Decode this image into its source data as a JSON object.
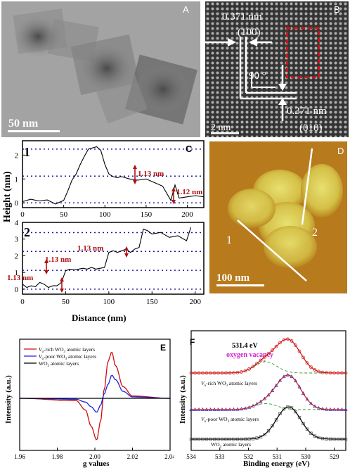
{
  "panel_a": {
    "letter": "A",
    "scale_bar": "50 nm"
  },
  "panel_b": {
    "letter": "B",
    "spacing_top": "0.371  nm",
    "plane_top": "(100)",
    "angle": "90 °",
    "spacing_bottom": "0.371 nm",
    "plane_bottom": "(010)",
    "scale_bar": "2 nm"
  },
  "panel_d": {
    "letter": "D",
    "scale_bar": "100 nm",
    "line1_label": "1",
    "line2_label": "2"
  },
  "panel_c": {
    "letter": "C",
    "profile1_label": "1",
    "profile2_label": "2",
    "ylabel": "Height (nm)",
    "xlabel": "Distance (nm)",
    "step_annotations_1": [
      "1.13 nm",
      "1.12 nm"
    ],
    "step_annotations_2": [
      "1.13 nm",
      "1.13 nm",
      "1.13 nm"
    ]
  },
  "panel_e": {
    "letter": "E",
    "xlabel": "g values",
    "ylabel": "Intensity (a.u.)",
    "legend_sub": "o",
    "legend_rich": "-rich WO",
    "legend_poor": "-poor WO",
    "legend_plain": "WO",
    "legend_sub3": "3",
    "legend_tail": " atomic layers"
  },
  "panel_f": {
    "letter": "F",
    "xlabel": "Binding energy (eV)",
    "ylabel": "Intensity (a.u.)",
    "peak_label": "531.4 eV",
    "vacancy_label": "oxygen vacancy",
    "label_rich": "-rich WO",
    "label_poor": "-poor WO",
    "label_plain": "WO",
    "sub3": "3",
    "tail": " atomic layers"
  },
  "chart_data": [
    {
      "type": "line",
      "panel": "C-1",
      "xlabel": "",
      "ylabel": "Height",
      "xlim": [
        0,
        220
      ],
      "ylim": [
        -0.2,
        2.6
      ],
      "y_ticks": [
        0,
        1,
        2
      ],
      "x": [
        0,
        10,
        20,
        30,
        40,
        50,
        55,
        60,
        65,
        70,
        75,
        80,
        85,
        90,
        95,
        100,
        105,
        110,
        115,
        120,
        130,
        140,
        150,
        160,
        170,
        180,
        185,
        190,
        200,
        210,
        220
      ],
      "values": [
        0.05,
        0.15,
        0.08,
        0.12,
        -0.05,
        0.1,
        0.5,
        0.95,
        1.2,
        1.6,
        1.95,
        2.25,
        2.3,
        2.35,
        2.2,
        1.6,
        1.2,
        1.1,
        1.05,
        1.1,
        1.0,
        0.95,
        1.0,
        0.85,
        0.7,
        0.1,
        0.75,
        0.2,
        0.25,
        0.3,
        0.25
      ],
      "reference_lines": [
        0,
        1.12,
        2.25
      ]
    },
    {
      "type": "line",
      "panel": "C-2",
      "xlabel": "Distance (nm)",
      "ylabel": "Height",
      "xlim": [
        0,
        210
      ],
      "ylim": [
        -0.3,
        4
      ],
      "x_ticks": [
        0,
        50,
        100,
        150,
        200
      ],
      "y_ticks": [
        0,
        1,
        2,
        3,
        4
      ],
      "x": [
        0,
        5,
        10,
        15,
        20,
        25,
        30,
        35,
        40,
        45,
        50,
        55,
        60,
        65,
        70,
        75,
        80,
        85,
        90,
        95,
        100,
        105,
        110,
        115,
        120,
        125,
        130,
        135,
        140,
        145,
        150,
        160,
        170,
        180,
        190,
        195
      ],
      "values": [
        0.3,
        0.1,
        0.2,
        0.15,
        0.4,
        0.3,
        0.1,
        0.2,
        0.2,
        0.4,
        1.1,
        1.2,
        1.15,
        1.2,
        1.25,
        1.2,
        1.3,
        1.2,
        1.25,
        1.3,
        2.2,
        2.3,
        2.2,
        2.3,
        2.4,
        2.2,
        2.4,
        2.5,
        3.6,
        3.5,
        3.3,
        3.4,
        3.1,
        3.2,
        2.9,
        3.7
      ],
      "reference_lines": [
        0,
        1.13,
        2.26,
        3.39
      ]
    },
    {
      "type": "line",
      "panel": "E",
      "xlabel": "g values",
      "ylabel": "Intensity (a.u.)",
      "xlim": [
        1.96,
        2.04
      ],
      "x_ticks": [
        1.96,
        1.98,
        2.0,
        2.02,
        2.04
      ],
      "series": [
        {
          "name": "Vo-rich WO3 atomic layers",
          "color": "#cc1010",
          "x": [
            1.96,
            1.99,
            1.995,
            1.998,
            2.001,
            2.003,
            2.005,
            2.007,
            2.009,
            2.011,
            2.015,
            2.02,
            2.04
          ],
          "values": [
            0,
            -0.05,
            -0.25,
            -0.6,
            -0.9,
            -0.5,
            0.2,
            0.8,
            1.0,
            0.7,
            0.25,
            0.05,
            0
          ]
        },
        {
          "name": "Vo-poor WO3 atomic layers",
          "color": "#2020dd",
          "x": [
            1.96,
            1.99,
            1.995,
            1.998,
            2.001,
            2.003,
            2.005,
            2.007,
            2.009,
            2.011,
            2.015,
            2.02,
            2.04
          ],
          "values": [
            0,
            -0.02,
            -0.08,
            -0.18,
            -0.3,
            -0.15,
            0.1,
            0.3,
            0.5,
            0.4,
            0.15,
            0.03,
            0
          ]
        },
        {
          "name": "WO3 atomic layers",
          "color": "#000000",
          "x": [
            1.96,
            2.04
          ],
          "values": [
            0,
            0
          ]
        }
      ]
    },
    {
      "type": "line",
      "panel": "F",
      "xlabel": "Binding energy (eV)",
      "ylabel": "Intensity (a.u.)",
      "xlim": [
        534,
        528.6
      ],
      "x_ticks": [
        534,
        533,
        532,
        531,
        530,
        529
      ],
      "annotations": [
        "531.4 eV",
        "oxygen vacancy"
      ],
      "series": [
        {
          "name": "Vo-rich WO3 atomic layers",
          "peak": 530.6,
          "shoulder": 531.4
        },
        {
          "name": "Vo-poor WO3 atomic layers",
          "peak": 530.6,
          "shoulder": 531.4
        },
        {
          "name": "WO3 atomic layers",
          "peak": 530.6
        }
      ]
    }
  ]
}
